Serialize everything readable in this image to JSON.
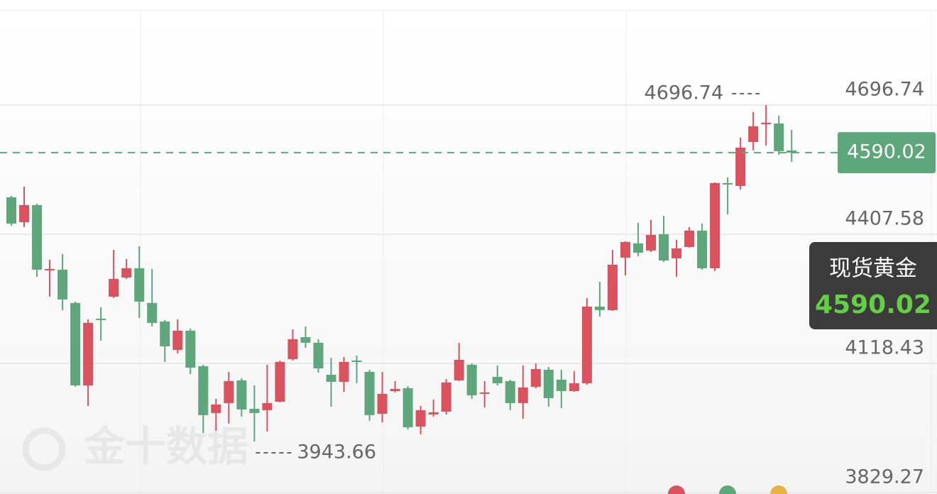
{
  "chart_data": {
    "type": "candlestick",
    "instrument": "现货黄金",
    "watermark": "金十数据",
    "last_price": 4590.02,
    "high_marker": 4696.74,
    "low_marker": 3943.66,
    "up_color": "#d9525e",
    "down_color": "#5da77a",
    "ylim": [
      3829.27,
      4908.0
    ],
    "yticks": [
      3829.27,
      4118.43,
      4407.58,
      4696.74
    ],
    "grid": true,
    "series": {
      "open": [
        4490.2,
        4434.6,
        4472.7,
        4328.2,
        4328.2,
        4253.6,
        4069.2,
        4218.6,
        4267.8,
        4310.7,
        4331.4,
        4253.6,
        4212.2,
        4148.7,
        4191.6,
        4112.1,
        4007.3,
        4029.6,
        4080.4,
        4016.9,
        4013.7,
        4032.7,
        4128.0,
        4177.2,
        4164.6,
        4093.0,
        4077.2,
        4124.8,
        4099.4,
        4005.7,
        4056.5,
        4062.9,
        3977.1,
        4004.1,
        4010.5,
        4080.4,
        4115.3,
        4051.8,
        4088.3,
        4078.8,
        4029.6,
        4066.1,
        4104.2,
        4081.9,
        4056.5,
        4074.0,
        4245.6,
        4237.7,
        4355.2,
        4387.0,
        4371.1,
        4407.6,
        4353.6,
        4379.0,
        4415.6,
        4331.4,
        4522.0,
        4515.6,
        4614.1,
        4655.4,
        4655.4,
        4595.1
      ],
      "high": [
        4493.4,
        4514.0,
        4475.9,
        4350.4,
        4363.1,
        4256.7,
        4217.0,
        4244.0,
        4372.7,
        4352.0,
        4380.6,
        4329.8,
        4215.4,
        4217.0,
        4196.3,
        4115.3,
        4039.1,
        4099.4,
        4085.1,
        4069.2,
        4115.3,
        4124.8,
        4194.7,
        4201.1,
        4172.5,
        4131.2,
        4132.8,
        4135.9,
        4104.2,
        4099.4,
        4078.8,
        4067.7,
        4023.2,
        4037.5,
        4083.5,
        4164.6,
        4118.4,
        4078.8,
        4113.7,
        4081.9,
        4113.7,
        4118.4,
        4110.5,
        4104.2,
        4101.0,
        4264.7,
        4301.2,
        4372.7,
        4391.7,
        4433.0,
        4439.4,
        4448.9,
        4394.9,
        4423.5,
        4431.4,
        4523.6,
        4534.7,
        4623.7,
        4680.8,
        4696.74,
        4672.9,
        4641.1
      ],
      "low": [
        4426.7,
        4423.5,
        4312.3,
        4267.8,
        4237.7,
        4066.1,
        4023.2,
        4169.3,
        4264.7,
        4307.5,
        4220.2,
        4201.1,
        4121.6,
        4140.7,
        4094.6,
        3962.8,
        3967.6,
        3983.5,
        3999.4,
        3943.66,
        3966.0,
        4031.1,
        4124.8,
        4153.4,
        4097.8,
        4021.6,
        4054.9,
        4074.0,
        3989.9,
        3986.7,
        4053.4,
        3970.8,
        3959.6,
        3999.4,
        4004.1,
        4078.8,
        4039.1,
        4020.0,
        4069.2,
        4013.7,
        3994.6,
        4062.9,
        4021.6,
        4018.4,
        4054.9,
        4070.8,
        4223.4,
        4236.1,
        4315.5,
        4358.4,
        4367.9,
        4345.6,
        4312.3,
        4377.4,
        4328.2,
        4325.0,
        4452.1,
        4507.7,
        4595.1,
        4606.2,
        4585.5,
        4569.6
      ],
      "close": [
        4431.4,
        4472.7,
        4328.2,
        4329.8,
        4261.5,
        4069.2,
        4209.0,
        4215.4,
        4307.5,
        4331.4,
        4256.7,
        4209.0,
        4156.6,
        4191.6,
        4108.9,
        4002.6,
        4026.4,
        4078.8,
        4015.3,
        4007.3,
        4029.6,
        4121.6,
        4172.5,
        4164.6,
        4107.3,
        4077.2,
        4121.6,
        4121.6,
        4002.6,
        4050.2,
        4061.3,
        3975.5,
        4013.7,
        4008.9,
        4075.6,
        4126.4,
        4047.0,
        4053.4,
        4074.0,
        4029.6,
        4064.5,
        4105.7,
        4040.6,
        4056.5,
        4074.0,
        4245.6,
        4237.7,
        4339.3,
        4390.1,
        4366.3,
        4406.0,
        4348.8,
        4375.8,
        4415.6,
        4331.4,
        4522.0,
        4518.8,
        4601.4,
        4649.1,
        4657.0,
        4593.5,
        4590.02
      ]
    }
  }
}
